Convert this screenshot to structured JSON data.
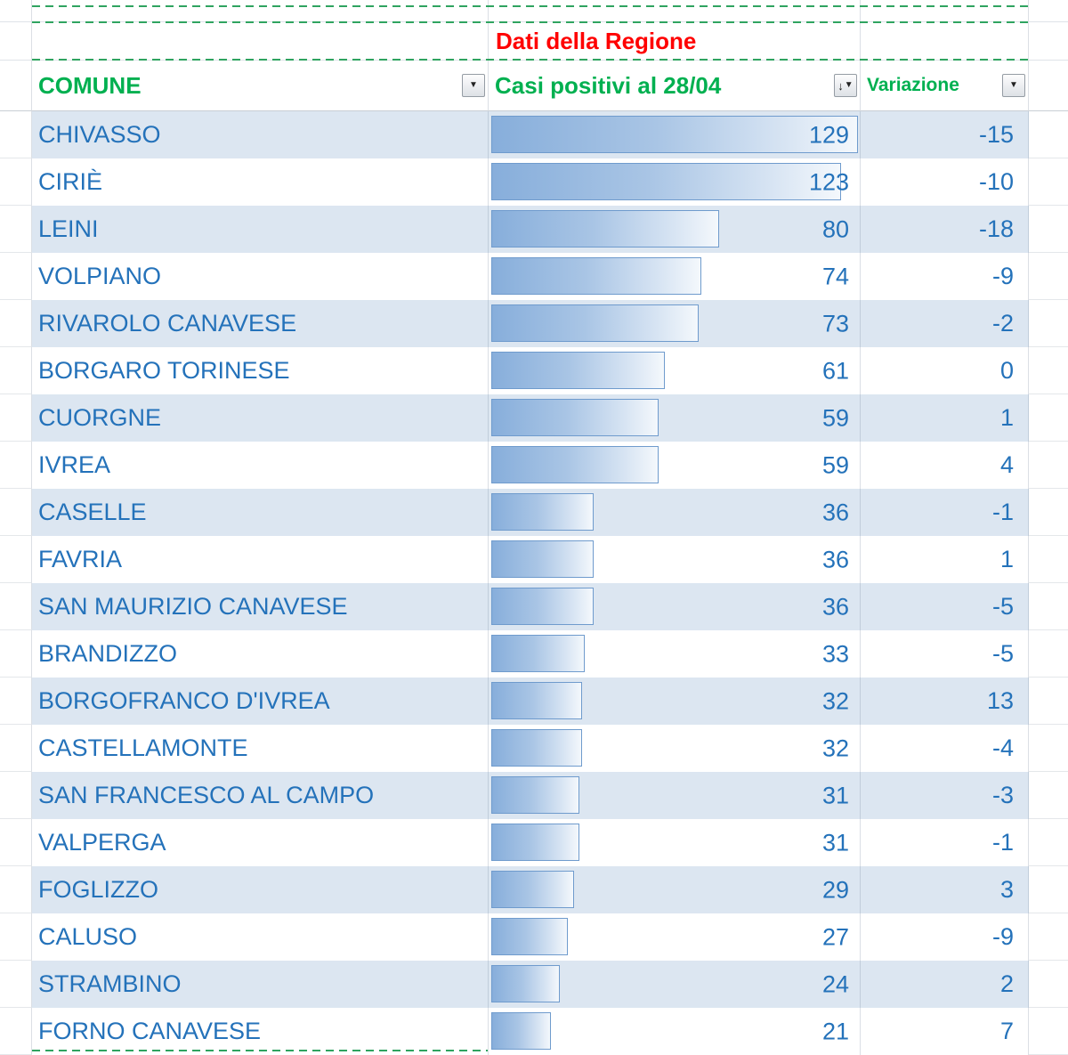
{
  "title": "Dati della Regione",
  "columns": {
    "comune": "COMUNE",
    "casi": "Casi positivi al 28/04",
    "variazione": "Variazione"
  },
  "icons": {
    "filter_dropdown": "▼",
    "sort_descending": "↓"
  },
  "colors": {
    "header_green": "#00B050",
    "title_red": "#FF0000",
    "cell_text_blue": "#2472BA",
    "alt_row_fill": "#DCE6F1",
    "databar_border": "#6f9bcd",
    "databar_fill_start": "#87aedb",
    "pagebreak_green": "#2FA360"
  },
  "rows": [
    {
      "comune": "CHIVASSO",
      "casi": 129,
      "variazione": -15
    },
    {
      "comune": "CIRIÈ",
      "casi": 123,
      "variazione": -10
    },
    {
      "comune": "LEINI",
      "casi": 80,
      "variazione": -18
    },
    {
      "comune": "VOLPIANO",
      "casi": 74,
      "variazione": -9
    },
    {
      "comune": "RIVAROLO CANAVESE",
      "casi": 73,
      "variazione": -2
    },
    {
      "comune": "BORGARO TORINESE",
      "casi": 61,
      "variazione": 0
    },
    {
      "comune": "CUORGNE",
      "casi": 59,
      "variazione": 1
    },
    {
      "comune": "IVREA",
      "casi": 59,
      "variazione": 4
    },
    {
      "comune": "CASELLE",
      "casi": 36,
      "variazione": -1
    },
    {
      "comune": "FAVRIA",
      "casi": 36,
      "variazione": 1
    },
    {
      "comune": "SAN MAURIZIO CANAVESE",
      "casi": 36,
      "variazione": -5
    },
    {
      "comune": "BRANDIZZO",
      "casi": 33,
      "variazione": -5
    },
    {
      "comune": "BORGOFRANCO D'IVREA",
      "casi": 32,
      "variazione": 13
    },
    {
      "comune": "CASTELLAMONTE",
      "casi": 32,
      "variazione": -4
    },
    {
      "comune": "SAN FRANCESCO AL CAMPO",
      "casi": 31,
      "variazione": -3
    },
    {
      "comune": "VALPERGA",
      "casi": 31,
      "variazione": -1
    },
    {
      "comune": "FOGLIZZO",
      "casi": 29,
      "variazione": 3
    },
    {
      "comune": "CALUSO",
      "casi": 27,
      "variazione": -9
    },
    {
      "comune": "STRAMBINO",
      "casi": 24,
      "variazione": 2
    },
    {
      "comune": "FORNO CANAVESE",
      "casi": 21,
      "variazione": 7
    }
  ],
  "chart_data": {
    "type": "bar",
    "title": "Casi positivi al 28/04",
    "categories": [
      "CHIVASSO",
      "CIRIÈ",
      "LEINI",
      "VOLPIANO",
      "RIVAROLO CANAVESE",
      "BORGARO TORINESE",
      "CUORGNE",
      "IVREA",
      "CASELLE",
      "FAVRIA",
      "SAN MAURIZIO CANAVESE",
      "BRANDIZZO",
      "BORGOFRANCO D'IVREA",
      "CASTELLAMONTE",
      "SAN FRANCESCO AL CAMPO",
      "VALPERGA",
      "FOGLIZZO",
      "CALUSO",
      "STRAMBINO",
      "FORNO CANAVESE"
    ],
    "series": [
      {
        "name": "Casi positivi al 28/04",
        "values": [
          129,
          123,
          80,
          74,
          73,
          61,
          59,
          59,
          36,
          36,
          36,
          33,
          32,
          32,
          31,
          31,
          29,
          27,
          24,
          21
        ]
      },
      {
        "name": "Variazione",
        "values": [
          -15,
          -10,
          -18,
          -9,
          -2,
          0,
          1,
          4,
          -1,
          1,
          -5,
          -5,
          13,
          -4,
          -3,
          -1,
          3,
          -9,
          2,
          7
        ]
      }
    ],
    "bar_max": 129,
    "xlabel": "",
    "ylabel": ""
  }
}
